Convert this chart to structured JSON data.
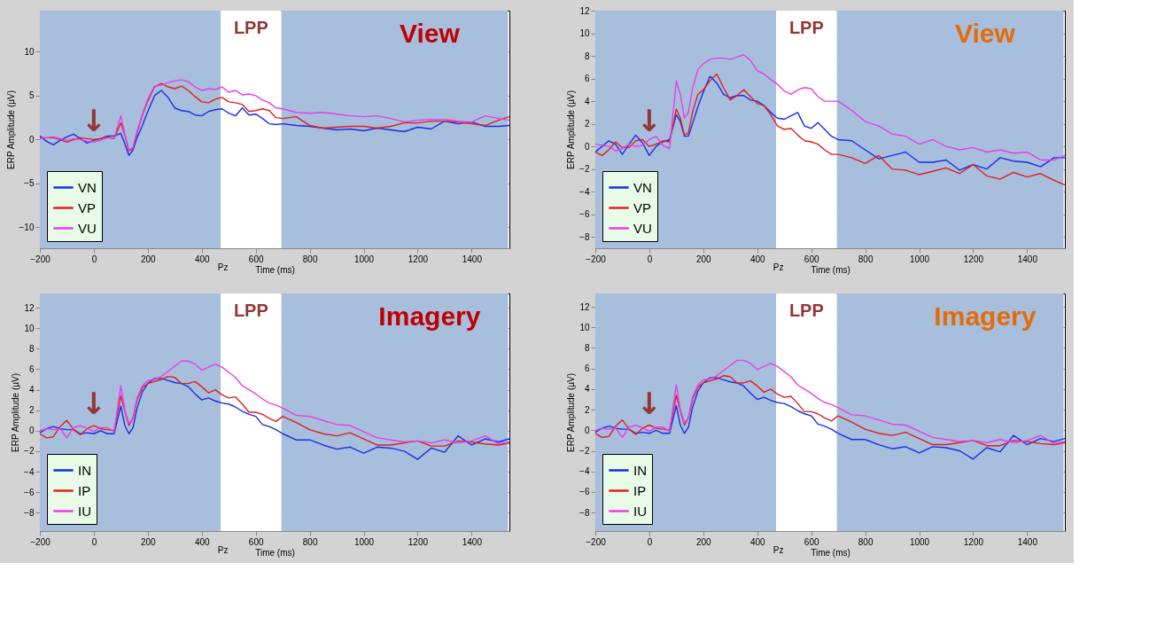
{
  "chart_data": [
    {
      "type": "line",
      "title": "View",
      "xlabel": "Time (ms)",
      "ylabel": "ERP Amplitude (µV)",
      "x": [
        -200,
        -175,
        -150,
        -125,
        -100,
        -75,
        -50,
        -25,
        0,
        25,
        50,
        75,
        100,
        115,
        130,
        145,
        160,
        180,
        200,
        225,
        250,
        275,
        300,
        325,
        350,
        375,
        400,
        425,
        450,
        475,
        500,
        525,
        550,
        575,
        600,
        625,
        650,
        675,
        700,
        750,
        800,
        850,
        900,
        950,
        1000,
        1050,
        1100,
        1150,
        1200,
        1250,
        1300,
        1350,
        1400,
        1450,
        1500,
        1540
      ],
      "series": [
        {
          "name": "VN",
          "color": "#1a2ee6",
          "values": [
            0.4,
            -0.2,
            -0.6,
            -0.1,
            0.3,
            0.6,
            0.1,
            -0.4,
            -0.1,
            0.1,
            0.4,
            0.4,
            0.7,
            -0.5,
            -1.8,
            -1.2,
            0.2,
            1.6,
            3.2,
            5.0,
            5.6,
            4.8,
            3.6,
            3.3,
            3.2,
            2.8,
            2.7,
            3.2,
            3.4,
            3.5,
            3.0,
            2.7,
            3.6,
            2.8,
            2.9,
            2.4,
            1.8,
            1.7,
            1.8,
            1.6,
            1.5,
            1.3,
            1.1,
            1.2,
            1.0,
            1.3,
            1.1,
            0.9,
            1.4,
            1.2,
            2.1,
            1.8,
            2.0,
            1.5,
            1.5,
            1.6
          ]
        },
        {
          "name": "VP",
          "color": "#e0201e",
          "values": [
            0.2,
            0.2,
            0.2,
            0.0,
            -0.3,
            0.0,
            0.2,
            0.1,
            0.0,
            0.1,
            0.3,
            0.1,
            1.9,
            0.5,
            -1.3,
            -1.0,
            0.8,
            2.8,
            4.4,
            6.0,
            6.4,
            6.0,
            5.8,
            6.1,
            5.6,
            4.9,
            4.3,
            4.2,
            4.6,
            4.8,
            4.3,
            4.2,
            4.0,
            3.2,
            3.3,
            3.5,
            3.3,
            2.5,
            2.4,
            2.6,
            1.6,
            1.3,
            1.4,
            1.5,
            1.5,
            1.3,
            1.5,
            1.9,
            1.9,
            2.1,
            2.1,
            2.0,
            1.8,
            1.6,
            2.2,
            2.6
          ]
        },
        {
          "name": "VU",
          "color": "#e83ee8",
          "values": [
            0.1,
            0.2,
            0.3,
            0.1,
            -0.1,
            0.1,
            0.0,
            -0.2,
            -0.3,
            -0.1,
            0.2,
            0.1,
            2.7,
            0.6,
            -1.2,
            -0.9,
            0.9,
            2.9,
            4.6,
            6.1,
            6.2,
            6.5,
            6.7,
            6.8,
            6.6,
            6.0,
            5.6,
            5.8,
            5.7,
            6.0,
            5.4,
            5.6,
            5.1,
            5.2,
            5.0,
            4.5,
            4.2,
            3.6,
            3.5,
            3.1,
            3.0,
            3.1,
            2.9,
            2.7,
            2.6,
            2.7,
            2.4,
            2.0,
            2.2,
            2.3,
            2.3,
            2.1,
            2.0,
            2.7,
            2.4,
            2.2
          ]
        }
      ],
      "xlim": [
        -200,
        1540
      ],
      "xticks": [
        -200,
        0,
        200,
        400,
        600,
        800,
        1000,
        1200,
        1400
      ],
      "ylim": [
        -12.4,
        14.7
      ],
      "yticks": [
        -10,
        -5,
        0,
        5,
        10
      ],
      "grid": true,
      "legend": "bottom left",
      "line_style": "solid",
      "bands": [
        {
          "axis": "x",
          "from": -200,
          "to": 470,
          "color": "#a7bedc"
        },
        {
          "axis": "x",
          "from": 470,
          "to": 695,
          "label": "LPP",
          "color": "#ffffff"
        },
        {
          "axis": "x",
          "from": 695,
          "to": 1535,
          "color": "#a7bedc"
        }
      ],
      "annotations": [
        "Pz",
        "↓"
      ]
    },
    {
      "type": "line",
      "title": "View",
      "xlabel": "Time (ms)",
      "ylabel": "ERP Amplitude (µV)",
      "x": [
        -200,
        -175,
        -150,
        -125,
        -100,
        -75,
        -50,
        -25,
        0,
        25,
        50,
        75,
        100,
        115,
        130,
        145,
        160,
        180,
        200,
        225,
        250,
        275,
        300,
        325,
        350,
        375,
        400,
        425,
        450,
        475,
        500,
        525,
        550,
        575,
        600,
        625,
        650,
        675,
        700,
        750,
        800,
        850,
        900,
        950,
        1000,
        1050,
        1100,
        1150,
        1200,
        1250,
        1300,
        1350,
        1400,
        1450,
        1500,
        1540
      ],
      "series": [
        {
          "name": "VN",
          "color": "#1a2ee6",
          "values": [
            -0.5,
            0.0,
            0.5,
            0.2,
            -0.7,
            0.2,
            1.0,
            0.3,
            -0.8,
            0.0,
            0.4,
            0.6,
            2.8,
            2.2,
            0.9,
            0.9,
            2.0,
            3.5,
            4.8,
            6.2,
            5.6,
            4.6,
            4.3,
            4.5,
            4.5,
            4.1,
            4.0,
            3.6,
            3.0,
            2.5,
            2.4,
            2.7,
            3.0,
            1.8,
            1.6,
            2.1,
            1.5,
            0.9,
            0.6,
            0.5,
            -0.3,
            -1.1,
            -0.8,
            -0.5,
            -1.4,
            -1.4,
            -1.2,
            -2.1,
            -1.6,
            -2.0,
            -1.0,
            -1.3,
            -1.4,
            -1.8,
            -1.0,
            -1.0
          ]
        },
        {
          "name": "VP",
          "color": "#e0201e",
          "values": [
            -0.5,
            -0.8,
            -0.3,
            0.4,
            -0.1,
            -0.1,
            0.5,
            0.6,
            0.0,
            0.2,
            0.5,
            0.4,
            3.3,
            2.5,
            1.0,
            1.2,
            3.0,
            4.6,
            5.0,
            5.8,
            6.4,
            5.2,
            4.1,
            4.5,
            5.0,
            4.4,
            3.8,
            3.6,
            2.8,
            1.8,
            1.5,
            1.6,
            1.0,
            0.5,
            0.4,
            0.2,
            -0.3,
            -0.7,
            -0.7,
            -1.0,
            -1.5,
            -0.8,
            -2.0,
            -2.1,
            -2.5,
            -2.2,
            -1.9,
            -2.4,
            -1.6,
            -2.6,
            -2.9,
            -2.3,
            -2.7,
            -2.4,
            -3.0,
            -3.4
          ]
        },
        {
          "name": "VU",
          "color": "#e83ee8",
          "values": [
            0.2,
            0.1,
            0.0,
            -0.4,
            -0.2,
            0.2,
            0.0,
            0.1,
            0.6,
            0.9,
            0.1,
            -0.2,
            5.8,
            4.6,
            2.5,
            3.0,
            5.1,
            6.8,
            7.3,
            7.7,
            7.8,
            7.8,
            7.7,
            7.9,
            8.1,
            7.6,
            6.7,
            6.4,
            5.9,
            5.5,
            4.9,
            4.6,
            5.0,
            5.2,
            5.1,
            4.4,
            4.0,
            4.0,
            4.0,
            3.2,
            2.2,
            1.8,
            1.1,
            0.9,
            0.2,
            0.6,
            0.0,
            -0.3,
            -0.1,
            -0.5,
            -0.3,
            -0.6,
            -0.5,
            -1.2,
            -1.2,
            -0.8
          ]
        }
      ],
      "xlim": [
        -200,
        1540
      ],
      "xticks": [
        -200,
        0,
        200,
        400,
        600,
        800,
        1000,
        1200,
        1400
      ],
      "ylim": [
        -9,
        12
      ],
      "yticks": [
        -8,
        -6,
        -4,
        -2,
        0,
        2,
        4,
        6,
        8,
        10,
        12
      ],
      "grid": true,
      "legend": "bottom left",
      "line_style": "solid",
      "bands": [
        {
          "axis": "x",
          "from": -200,
          "to": 470,
          "color": "#a7bedc"
        },
        {
          "axis": "x",
          "from": 470,
          "to": 695,
          "label": "LPP",
          "color": "#ffffff"
        },
        {
          "axis": "x",
          "from": 695,
          "to": 1535,
          "color": "#a7bedc"
        }
      ],
      "annotations": [
        "Pz",
        "↓"
      ]
    },
    {
      "type": "line",
      "title": "Imagery",
      "xlabel": "Time (ms)",
      "ylabel": "ERP Amplitude (µV)",
      "x": [
        -200,
        -175,
        -150,
        -125,
        -100,
        -75,
        -50,
        -25,
        0,
        25,
        50,
        75,
        100,
        115,
        130,
        145,
        160,
        180,
        200,
        225,
        250,
        275,
        300,
        325,
        350,
        375,
        400,
        425,
        450,
        475,
        500,
        525,
        550,
        575,
        600,
        625,
        650,
        675,
        700,
        750,
        800,
        850,
        900,
        950,
        1000,
        1050,
        1100,
        1150,
        1200,
        1250,
        1300,
        1350,
        1400,
        1450,
        1500,
        1540
      ],
      "series": [
        {
          "name": "IN",
          "color": "#1a2ee6",
          "values": [
            -0.2,
            0.2,
            0.4,
            0.2,
            0.1,
            0.1,
            -0.3,
            -0.2,
            -0.3,
            0.0,
            -0.3,
            -0.3,
            2.4,
            0.5,
            -0.3,
            0.3,
            2.2,
            3.8,
            4.6,
            5.1,
            5.1,
            4.9,
            4.7,
            4.6,
            4.3,
            3.6,
            3.0,
            3.2,
            2.9,
            2.7,
            2.6,
            2.3,
            1.9,
            1.6,
            1.4,
            0.6,
            0.4,
            0.1,
            -0.3,
            -0.9,
            -0.9,
            -1.4,
            -1.8,
            -1.6,
            -2.2,
            -1.6,
            -1.7,
            -2.0,
            -2.8,
            -1.7,
            -2.1,
            -0.5,
            -1.4,
            -0.8,
            -1.1,
            -0.8
          ]
        },
        {
          "name": "IP",
          "color": "#e0201e",
          "values": [
            -0.3,
            -0.7,
            -0.6,
            0.4,
            1.0,
            0.1,
            -0.4,
            0.2,
            0.5,
            0.2,
            0.1,
            0.0,
            3.4,
            1.9,
            0.5,
            1.2,
            3.0,
            4.2,
            4.6,
            4.8,
            5.0,
            5.3,
            5.2,
            4.6,
            4.6,
            4.8,
            4.3,
            3.7,
            4.0,
            3.5,
            3.2,
            3.3,
            2.6,
            1.8,
            1.8,
            1.6,
            1.2,
            0.9,
            1.4,
            0.8,
            0.1,
            -0.3,
            -0.5,
            -0.2,
            -0.8,
            -1.4,
            -1.4,
            -1.2,
            -1.0,
            -1.5,
            -1.5,
            -1.0,
            -1.1,
            -1.3,
            -1.4,
            -1.2
          ]
        },
        {
          "name": "IU",
          "color": "#e83ee8",
          "values": [
            0.0,
            0.2,
            0.1,
            0.2,
            -0.7,
            0.3,
            0.5,
            0.2,
            -0.1,
            0.3,
            0.3,
            -0.1,
            4.4,
            2.0,
            0.7,
            1.2,
            3.2,
            4.4,
            4.9,
            5.0,
            5.3,
            5.8,
            6.3,
            6.8,
            6.8,
            6.5,
            5.9,
            6.2,
            6.5,
            6.2,
            5.7,
            5.2,
            4.4,
            4.0,
            3.6,
            3.1,
            2.7,
            2.5,
            2.2,
            1.5,
            1.4,
            1.0,
            0.6,
            0.5,
            -0.1,
            -0.7,
            -0.9,
            -1.1,
            -1.0,
            -1.2,
            -0.9,
            -1.2,
            -1.0,
            -0.5,
            -1.3,
            -1.1
          ]
        }
      ],
      "xlim": [
        -200,
        1540
      ],
      "xticks": [
        -200,
        0,
        200,
        400,
        600,
        800,
        1000,
        1200,
        1400
      ],
      "ylim": [
        -9.8,
        13.4
      ],
      "yticks": [
        -8,
        -6,
        -4,
        -2,
        0,
        2,
        4,
        6,
        8,
        10,
        12
      ],
      "grid": true,
      "legend": "bottom left",
      "line_style": "solid",
      "bands": [
        {
          "axis": "x",
          "from": -200,
          "to": 470,
          "color": "#a7bedc"
        },
        {
          "axis": "x",
          "from": 470,
          "to": 695,
          "label": "LPP",
          "color": "#ffffff"
        },
        {
          "axis": "x",
          "from": 695,
          "to": 1535,
          "color": "#a7bedc"
        }
      ],
      "annotations": [
        "Pz",
        "↓"
      ]
    },
    {
      "type": "line",
      "title": "Imagery",
      "xlabel": "Time (ms)",
      "ylabel": "ERP Amplitude (µV)",
      "x": [
        -200,
        -175,
        -150,
        -125,
        -100,
        -75,
        -50,
        -25,
        0,
        25,
        50,
        75,
        100,
        115,
        130,
        145,
        160,
        180,
        200,
        225,
        250,
        275,
        300,
        325,
        350,
        375,
        400,
        425,
        450,
        475,
        500,
        525,
        550,
        575,
        600,
        625,
        650,
        675,
        700,
        750,
        800,
        850,
        900,
        950,
        1000,
        1050,
        1100,
        1150,
        1200,
        1250,
        1300,
        1350,
        1400,
        1450,
        1500,
        1540
      ],
      "series": [
        {
          "name": "IN",
          "color": "#1a2ee6",
          "values": [
            -0.2,
            0.2,
            0.4,
            0.2,
            0.1,
            0.1,
            -0.3,
            -0.2,
            -0.3,
            0.0,
            -0.3,
            -0.3,
            2.4,
            0.5,
            -0.3,
            0.3,
            2.2,
            3.8,
            4.6,
            5.1,
            5.1,
            4.9,
            4.7,
            4.6,
            4.3,
            3.6,
            3.0,
            3.2,
            2.9,
            2.7,
            2.6,
            2.3,
            1.9,
            1.6,
            1.4,
            0.6,
            0.4,
            0.1,
            -0.3,
            -0.9,
            -0.9,
            -1.4,
            -1.8,
            -1.6,
            -2.2,
            -1.6,
            -1.7,
            -2.0,
            -2.8,
            -1.7,
            -2.1,
            -0.5,
            -1.4,
            -0.8,
            -1.1,
            -0.8
          ]
        },
        {
          "name": "IP",
          "color": "#e0201e",
          "values": [
            -0.3,
            -0.7,
            -0.6,
            0.4,
            1.0,
            0.1,
            -0.4,
            0.2,
            0.5,
            0.2,
            0.1,
            0.0,
            3.4,
            1.9,
            0.5,
            1.2,
            3.0,
            4.2,
            4.6,
            4.8,
            5.0,
            5.3,
            5.2,
            4.6,
            4.6,
            4.8,
            4.3,
            3.7,
            4.0,
            3.5,
            3.2,
            3.3,
            2.6,
            1.8,
            1.8,
            1.6,
            1.2,
            0.9,
            1.4,
            0.8,
            0.1,
            -0.3,
            -0.5,
            -0.2,
            -0.8,
            -1.4,
            -1.4,
            -1.2,
            -1.0,
            -1.5,
            -1.5,
            -1.0,
            -1.1,
            -1.3,
            -1.4,
            -1.2
          ]
        },
        {
          "name": "IU",
          "color": "#e83ee8",
          "values": [
            0.0,
            0.2,
            0.1,
            0.2,
            -0.7,
            0.3,
            0.5,
            0.2,
            -0.1,
            0.3,
            0.3,
            -0.1,
            4.4,
            2.0,
            0.7,
            1.2,
            3.2,
            4.4,
            4.9,
            5.0,
            5.3,
            5.8,
            6.3,
            6.8,
            6.8,
            6.5,
            5.9,
            6.2,
            6.5,
            6.2,
            5.7,
            5.2,
            4.4,
            4.0,
            3.6,
            3.1,
            2.7,
            2.5,
            2.2,
            1.5,
            1.4,
            1.0,
            0.6,
            0.5,
            -0.1,
            -0.7,
            -0.9,
            -1.1,
            -1.0,
            -1.2,
            -0.9,
            -1.2,
            -1.0,
            -0.5,
            -1.3,
            -1.1
          ]
        }
      ],
      "xlim": [
        -200,
        1540
      ],
      "xticks": [
        -200,
        0,
        200,
        400,
        600,
        800,
        1000,
        1200,
        1400
      ],
      "ylim": [
        -9.8,
        13.3
      ],
      "yticks": [
        -8,
        -6,
        -4,
        -2,
        0,
        2,
        4,
        6,
        8,
        10,
        12
      ],
      "grid": true,
      "legend": "bottom left",
      "line_style": "solid",
      "bands": [
        {
          "axis": "x",
          "from": -200,
          "to": 470,
          "color": "#a7bedc"
        },
        {
          "axis": "x",
          "from": 470,
          "to": 695,
          "label": "LPP",
          "color": "#ffffff"
        },
        {
          "axis": "x",
          "from": 695,
          "to": 1535,
          "color": "#a7bedc"
        }
      ],
      "annotations": [
        "Pz",
        "↓"
      ]
    }
  ]
}
